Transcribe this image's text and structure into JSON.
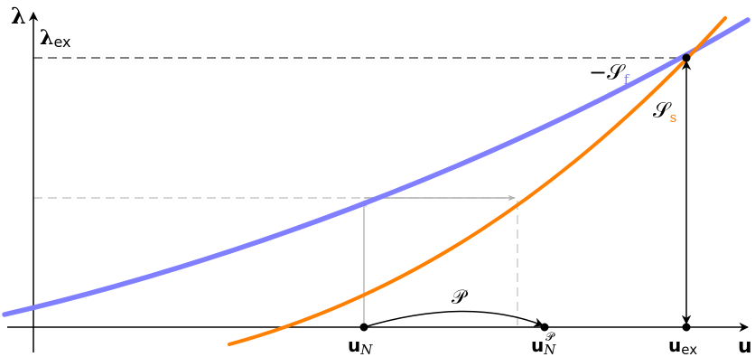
{
  "axes": {
    "x_label": "u",
    "y_label": "λ"
  },
  "labels": {
    "lambda_ex_main": "λ",
    "lambda_ex_sub": "ex",
    "neg_sf_prefix": "−𝒮",
    "sf_sub": "f",
    "ss_main": "𝒮",
    "ss_sub": "s",
    "p_label": "𝒫",
    "u_n_main": "u",
    "u_n_sub": "N",
    "u_np_main": "u",
    "u_np_sub": "N",
    "u_np_sup": "𝒫",
    "u_ex_main": "u",
    "u_ex_sub": "ex"
  },
  "colors": {
    "blue_curve": "#7f7fff",
    "orange_curve": "#ff7f00",
    "gray_guides": "#b3b3b3",
    "black": "#000000"
  }
}
